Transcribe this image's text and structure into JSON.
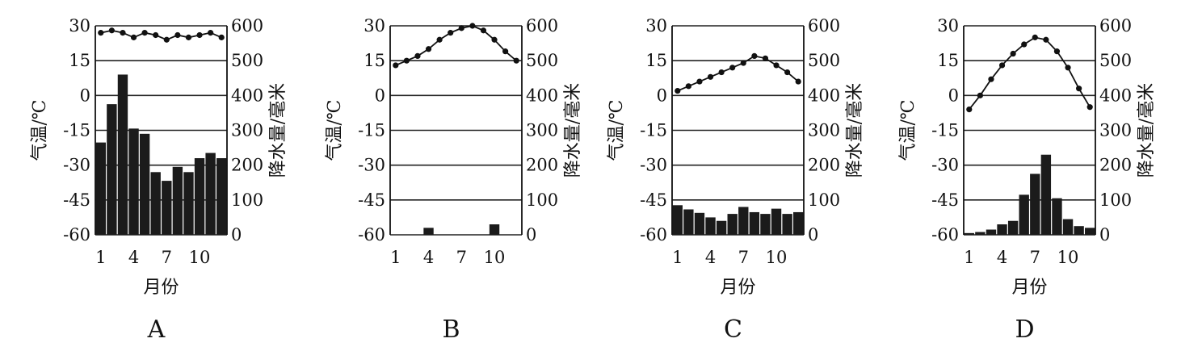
{
  "chart_data": [
    {
      "type": "bar",
      "title": "A",
      "xlabel": "月份",
      "ylabel_left": "气温/℃",
      "ylabel_right": "降水量/毫米",
      "x_ticks": [
        "1",
        "4",
        "7",
        "10"
      ],
      "temp_ticks": [
        "30",
        "15",
        "0",
        "-15",
        "-30",
        "-45",
        "-60"
      ],
      "precip_ticks": [
        "600",
        "500",
        "400",
        "300",
        "200",
        "100",
        "0"
      ],
      "temp_range": [
        -60,
        30
      ],
      "precip_range": [
        0,
        600
      ],
      "grid": true,
      "months": [
        1,
        2,
        3,
        4,
        5,
        6,
        7,
        8,
        9,
        10,
        11,
        12
      ],
      "temperature": [
        27,
        28,
        27,
        25,
        27,
        26,
        24,
        26,
        25,
        26,
        27,
        25
      ],
      "precipitation": [
        265,
        375,
        460,
        305,
        290,
        180,
        155,
        195,
        180,
        220,
        235,
        220
      ]
    },
    {
      "type": "bar",
      "title": "B",
      "xlabel": "",
      "ylabel_left": "气温/℃",
      "ylabel_right": "降水量/毫米",
      "x_ticks": [
        "1",
        "4",
        "7",
        "10"
      ],
      "temp_ticks": [
        "30",
        "15",
        "0",
        "-15",
        "-30",
        "-45",
        "-60"
      ],
      "precip_ticks": [
        "600",
        "500",
        "400",
        "300",
        "200",
        "100",
        "0"
      ],
      "temp_range": [
        -60,
        30
      ],
      "precip_range": [
        0,
        600
      ],
      "grid": true,
      "months": [
        1,
        2,
        3,
        4,
        5,
        6,
        7,
        8,
        9,
        10,
        11,
        12
      ],
      "temperature": [
        13,
        15,
        17,
        20,
        24,
        27,
        29,
        30,
        28,
        24,
        19,
        15
      ],
      "precipitation": [
        0,
        0,
        0,
        20,
        0,
        0,
        0,
        0,
        0,
        30,
        0,
        0
      ]
    },
    {
      "type": "bar",
      "title": "C",
      "xlabel": "月份",
      "ylabel_left": "气温/℃",
      "ylabel_right": "降水量/毫米",
      "x_ticks": [
        "1",
        "4",
        "7",
        "10"
      ],
      "temp_ticks": [
        "30",
        "15",
        "0",
        "-15",
        "-30",
        "-45",
        "-60"
      ],
      "precip_ticks": [
        "600",
        "500",
        "400",
        "300",
        "200",
        "100",
        "0"
      ],
      "temp_range": [
        -60,
        30
      ],
      "precip_range": [
        0,
        600
      ],
      "grid": true,
      "months": [
        1,
        2,
        3,
        4,
        5,
        6,
        7,
        8,
        9,
        10,
        11,
        12
      ],
      "temperature": [
        2,
        4,
        6,
        8,
        10,
        12,
        14,
        17,
        16,
        13,
        10,
        6
      ],
      "precipitation": [
        85,
        73,
        63,
        50,
        40,
        60,
        80,
        65,
        60,
        75,
        60,
        65
      ]
    },
    {
      "type": "bar",
      "title": "D",
      "xlabel": "月份",
      "ylabel_left": "气温/℃",
      "ylabel_right": "降水量/毫米",
      "x_ticks": [
        "1",
        "4",
        "7",
        "10"
      ],
      "temp_ticks": [
        "30",
        "15",
        "0",
        "-15",
        "-30",
        "-45",
        "-60"
      ],
      "precip_ticks": [
        "600",
        "500",
        "400",
        "300",
        "200",
        "100",
        "0"
      ],
      "temp_range": [
        -60,
        30
      ],
      "precip_range": [
        0,
        600
      ],
      "grid": true,
      "months": [
        1,
        2,
        3,
        4,
        5,
        6,
        7,
        8,
        9,
        10,
        11,
        12
      ],
      "temperature": [
        -6,
        0,
        7,
        13,
        18,
        22,
        25,
        24,
        19,
        12,
        3,
        -5
      ],
      "precipitation": [
        5,
        8,
        15,
        30,
        40,
        115,
        175,
        230,
        105,
        45,
        25,
        20
      ]
    }
  ]
}
